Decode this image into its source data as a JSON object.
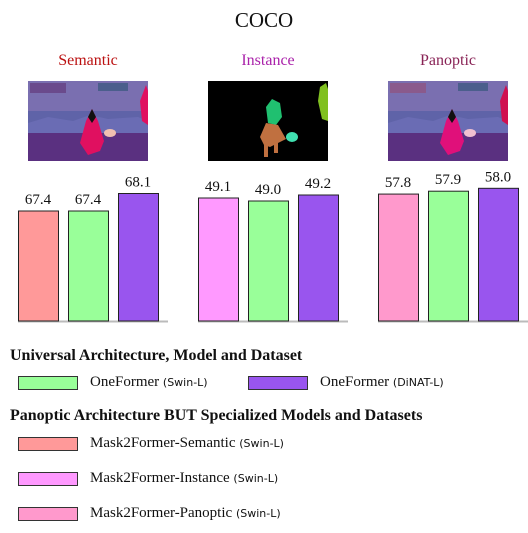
{
  "title": "COCO",
  "colors": {
    "oneformer_swin": "#99ff99",
    "oneformer_dinat": "#9955ee",
    "m2f_semantic": "#ff9999",
    "m2f_instance": "#ff99ff",
    "m2f_panoptic": "#ff99cc",
    "semantic_title": "#bb1111",
    "instance_title": "#aa22aa",
    "panoptic_title": "#882255"
  },
  "panels": [
    {
      "title": "Semantic",
      "image": "semantic-segmentation-thumbnail"
    },
    {
      "title": "Instance",
      "image": "instance-segmentation-thumbnail"
    },
    {
      "title": "Panoptic",
      "image": "panoptic-segmentation-thumbnail"
    }
  ],
  "chart_data": [
    {
      "type": "bar",
      "title": "Semantic",
      "categories": [
        "Mask2Former-Semantic",
        "OneFormer (Swin-L)",
        "OneFormer (DiNAT-L)"
      ],
      "values": [
        67.4,
        67.4,
        68.1
      ],
      "labels": [
        "67.4",
        "67.4",
        "68.1"
      ],
      "ylim": [
        63,
        69
      ]
    },
    {
      "type": "bar",
      "title": "Instance",
      "categories": [
        "Mask2Former-Instance",
        "OneFormer (Swin-L)",
        "OneFormer (DiNAT-L)"
      ],
      "values": [
        49.1,
        49.0,
        49.2
      ],
      "labels": [
        "49.1",
        "49.0",
        "49.2"
      ],
      "ylim": [
        45,
        50
      ]
    },
    {
      "type": "bar",
      "title": "Panoptic",
      "categories": [
        "Mask2Former-Panoptic",
        "OneFormer (Swin-L)",
        "OneFormer (DiNAT-L)"
      ],
      "values": [
        57.8,
        57.9,
        58.0
      ],
      "labels": [
        "57.8",
        "57.9",
        "58.0"
      ],
      "ylim": [
        53.4,
        58.6
      ]
    }
  ],
  "legend": {
    "universal_heading": "Universal Architecture, Model and Dataset",
    "specialized_heading": "Panoptic Architecture BUT Specialized Models and Datasets",
    "items": [
      {
        "name": "OneFormer",
        "note": "(Swin-L)"
      },
      {
        "name": "OneFormer",
        "note": "(DiNAT-L)"
      },
      {
        "name": "Mask2Former-Semantic",
        "note": "(Swin-L)"
      },
      {
        "name": "Mask2Former-Instance",
        "note": "(Swin-L)"
      },
      {
        "name": "Mask2Former-Panoptic",
        "note": "(Swin-L)"
      }
    ]
  }
}
